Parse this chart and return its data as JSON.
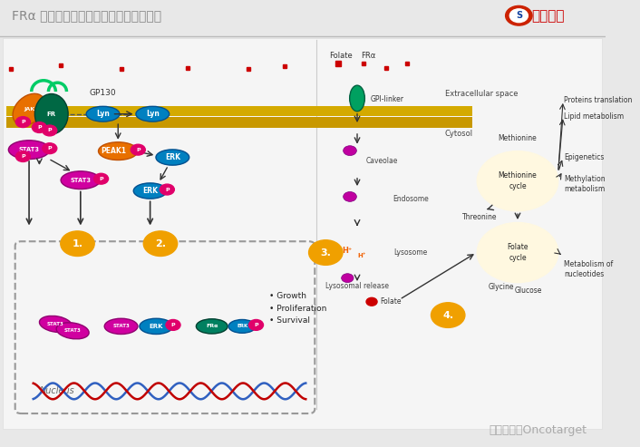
{
  "title": "FRα 介导的叶酸内化和癌症信号调节通路",
  "logo_text": "氧基财经",
  "source_text": "图片来源：Oncotarget",
  "bg_color": "#e8e8e8",
  "title_color": "#888888",
  "title_fontsize": 10,
  "logo_color": "#cc0000",
  "source_color": "#aaaaaa",
  "source_fontsize": 9,
  "panel_bg": "#f5f5f5",
  "diagram_border": "#dddddd",
  "membrane_color": "#c8a000",
  "cytosol_label": "Cytosol",
  "extracellular_label": "Extracellular space",
  "folate_label": "Folate",
  "fro_label": "FRα",
  "gpi_label": "GPI-linker",
  "caveolae_label": "Caveolae",
  "endosome_label": "Endosome",
  "lysosome_label": "Lysosome",
  "lysosomal_release": "Lysosomal release",
  "gp130_label": "GP130",
  "nucleus_label": "Nucleus",
  "methionine_cycle": "Methionine\ncycle",
  "folate_cycle": "Folate\ncycle",
  "methionine": "Methionine",
  "threonine": "Threonine",
  "glycine": "Glycine",
  "glucose": "Glucose",
  "proteins_translation": "Proteins translation",
  "lipid_metabolism": "Lipid metabolism",
  "epigenetics": "Epigenetics",
  "methylation_metabolism": "Methylation\nmetabolism",
  "metabolism_nucleotides": "Metabolism of\nnucleotides",
  "growth_text": "• Growth\n• Proliferation\n• Survival",
  "orange_color": "#f0a000",
  "pink_color": "#e8006a",
  "blue_color": "#0080c0",
  "green_color": "#00a060",
  "magenta_color": "#d000a0",
  "red_diamond_color": "#cc0000",
  "dna_color": "#3060c0"
}
